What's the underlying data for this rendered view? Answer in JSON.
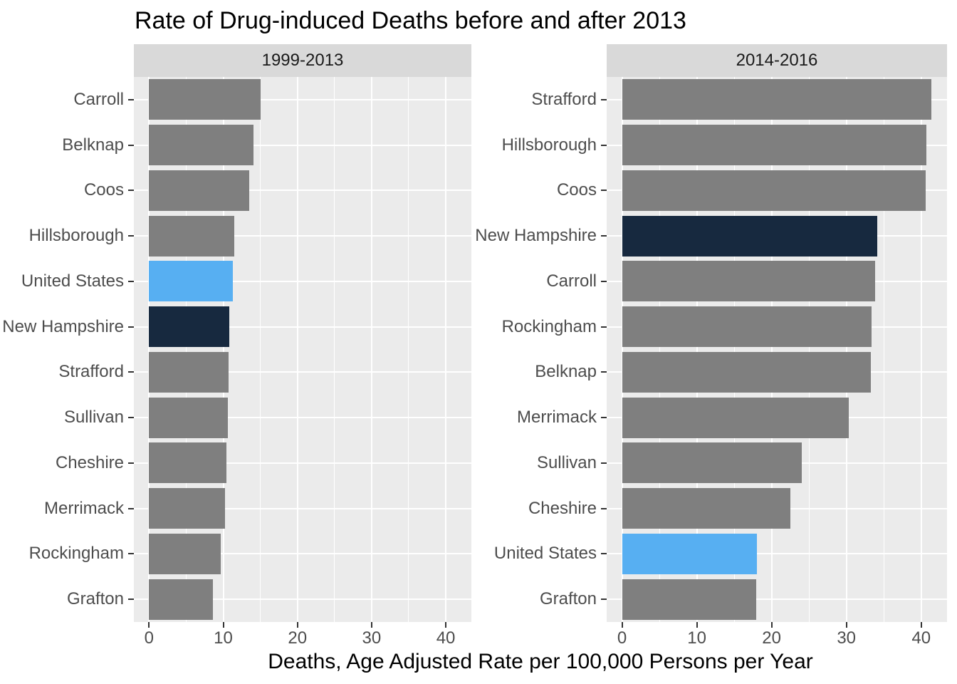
{
  "title": "Rate of Drug-induced Deaths before and after 2013",
  "x_axis_label": "Deaths, Age Adjusted Rate per 100,000 Persons per Year",
  "colors": {
    "bar_default": "#7F7F7F",
    "bar_united_states": "#57AFF2",
    "bar_new_hampshire": "#17293F",
    "panel_background": "#EBEBEB",
    "strip_background": "#D9D9D9",
    "gridline": "#FFFFFF",
    "axis_text": "#4D4D4D",
    "tick_mark": "#333333",
    "title_text": "#000000"
  },
  "chart_data": [
    {
      "type": "bar",
      "orientation": "horizontal",
      "facet": "1999-2013",
      "xlabel": "Deaths, Age Adjusted Rate per 100,000 Persons per Year",
      "xlim": [
        0,
        43
      ],
      "xticks": [
        0,
        10,
        20,
        30,
        40
      ],
      "minor_xticks": [
        5,
        15,
        25,
        35
      ],
      "grid": "on",
      "rows": [
        {
          "label": "Carroll",
          "value": 15.0,
          "color_role": "default"
        },
        {
          "label": "Belknap",
          "value": 14.1,
          "color_role": "default"
        },
        {
          "label": "Coos",
          "value": 13.5,
          "color_role": "default"
        },
        {
          "label": "Hillsborough",
          "value": 11.5,
          "color_role": "default"
        },
        {
          "label": "United States",
          "value": 11.3,
          "color_role": "united_states"
        },
        {
          "label": "New Hampshire",
          "value": 10.8,
          "color_role": "new_hampshire"
        },
        {
          "label": "Strafford",
          "value": 10.7,
          "color_role": "default"
        },
        {
          "label": "Sullivan",
          "value": 10.6,
          "color_role": "default"
        },
        {
          "label": "Cheshire",
          "value": 10.4,
          "color_role": "default"
        },
        {
          "label": "Merrimack",
          "value": 10.2,
          "color_role": "default"
        },
        {
          "label": "Rockingham",
          "value": 9.7,
          "color_role": "default"
        },
        {
          "label": "Grafton",
          "value": 8.6,
          "color_role": "default"
        }
      ]
    },
    {
      "type": "bar",
      "orientation": "horizontal",
      "facet": "2014-2016",
      "xlabel": "Deaths, Age Adjusted Rate per 100,000 Persons per Year",
      "xlim": [
        0,
        43
      ],
      "xticks": [
        0,
        10,
        20,
        30,
        40
      ],
      "minor_xticks": [
        5,
        15,
        25,
        35
      ],
      "grid": "on",
      "rows": [
        {
          "label": "Strafford",
          "value": 41.4,
          "color_role": "default"
        },
        {
          "label": "Hillsborough",
          "value": 40.7,
          "color_role": "default"
        },
        {
          "label": "Coos",
          "value": 40.6,
          "color_role": "default"
        },
        {
          "label": "New Hampshire",
          "value": 34.1,
          "color_role": "new_hampshire"
        },
        {
          "label": "Carroll",
          "value": 33.8,
          "color_role": "default"
        },
        {
          "label": "Rockingham",
          "value": 33.4,
          "color_role": "default"
        },
        {
          "label": "Belknap",
          "value": 33.3,
          "color_role": "default"
        },
        {
          "label": "Merrimack",
          "value": 30.3,
          "color_role": "default"
        },
        {
          "label": "Sullivan",
          "value": 24.0,
          "color_role": "default"
        },
        {
          "label": "Cheshire",
          "value": 22.5,
          "color_role": "default"
        },
        {
          "label": "United States",
          "value": 18.0,
          "color_role": "united_states"
        },
        {
          "label": "Grafton",
          "value": 17.9,
          "color_role": "default"
        }
      ]
    }
  ]
}
